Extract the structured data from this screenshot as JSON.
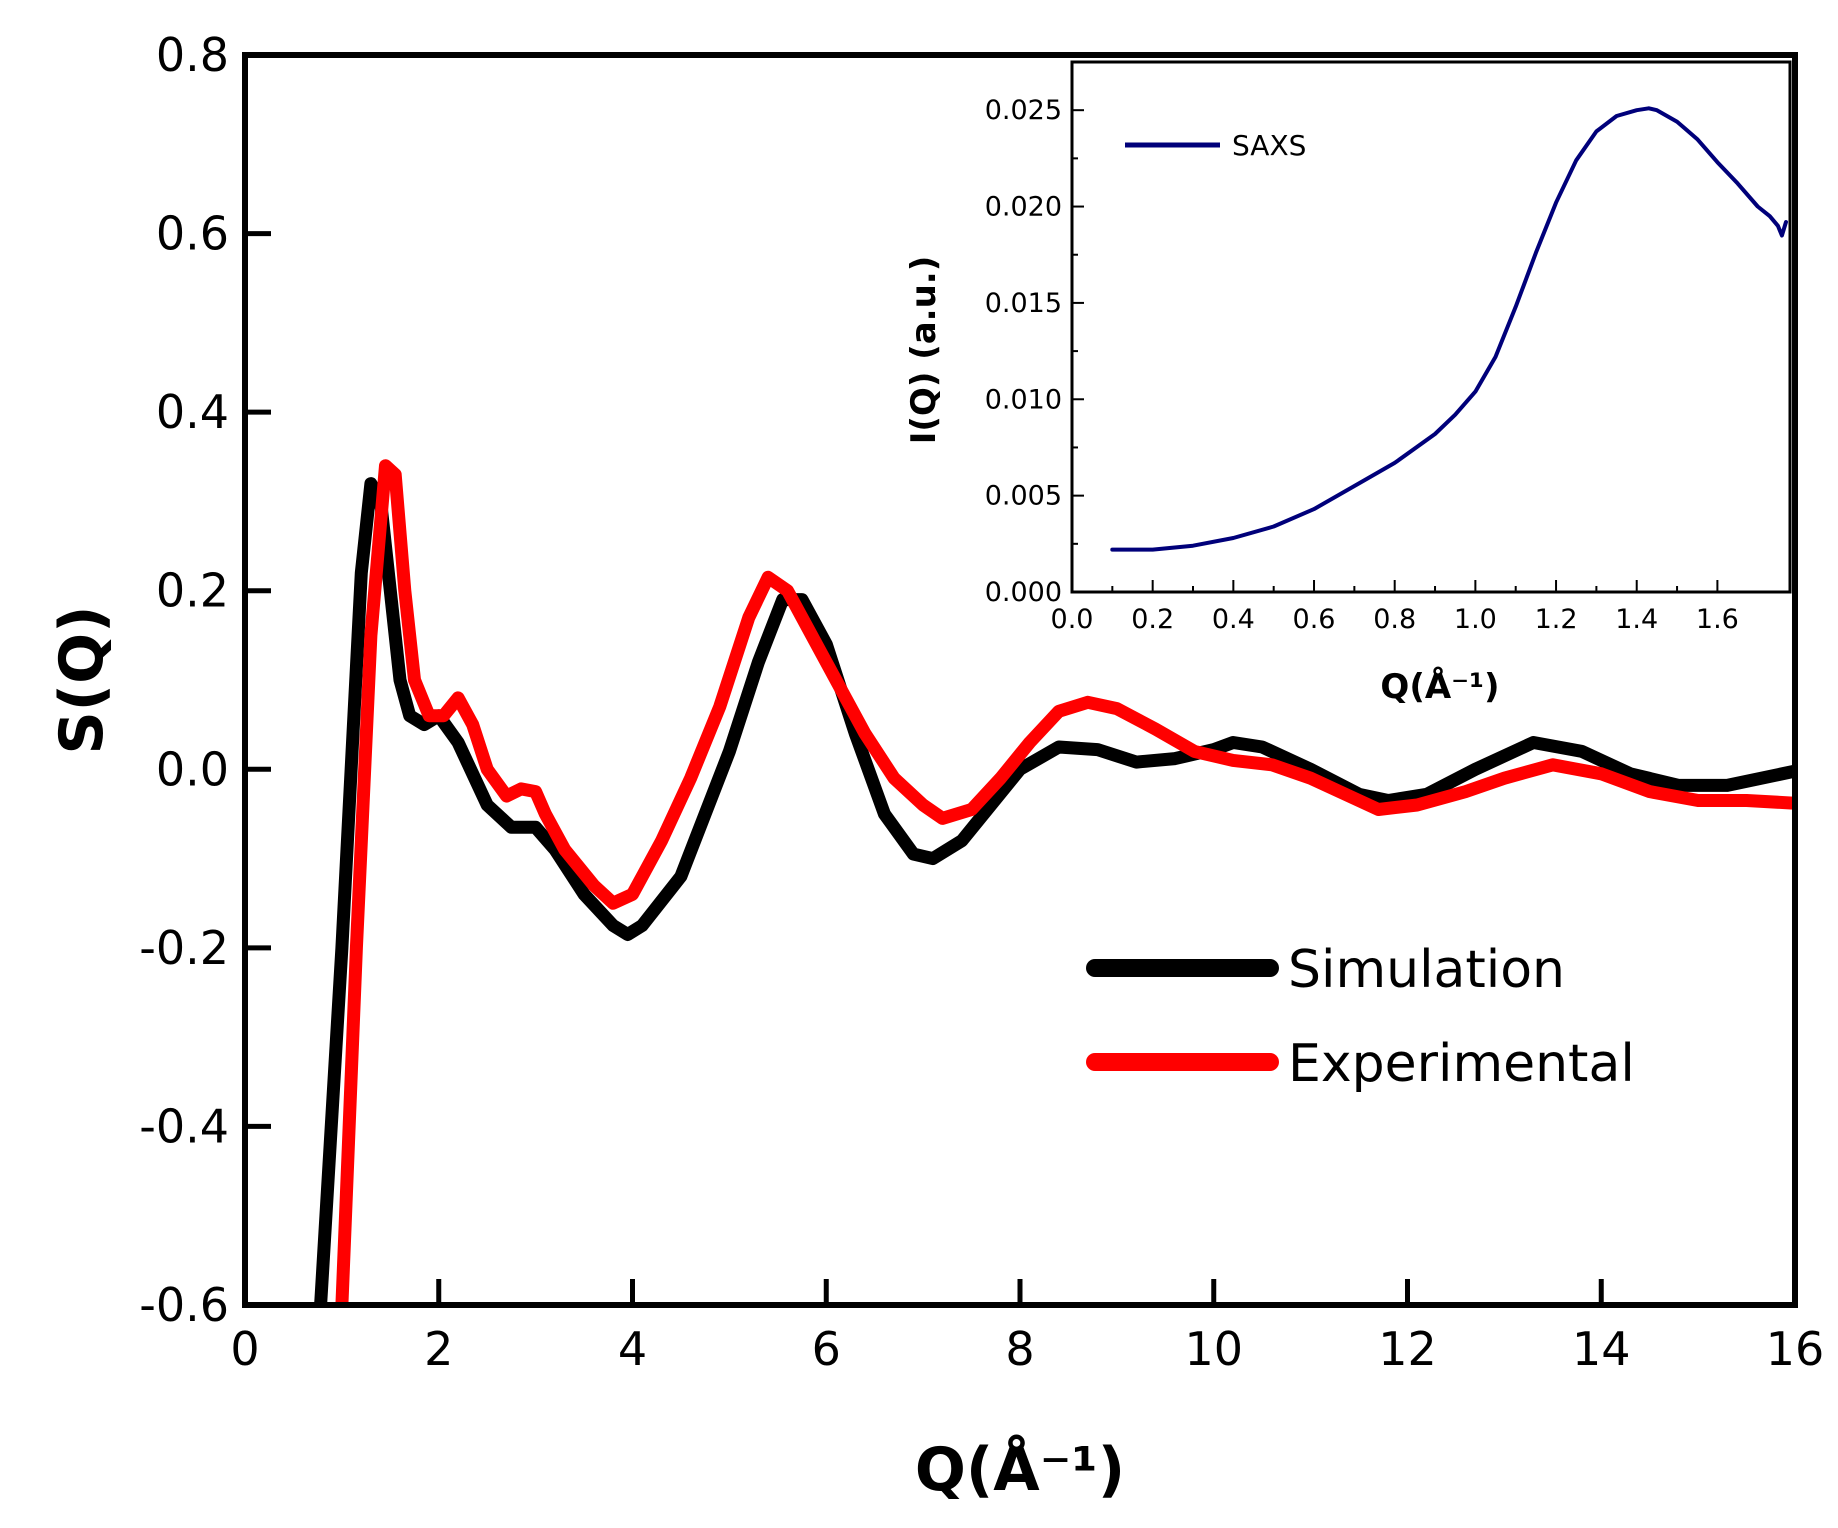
{
  "chart_data": [
    {
      "type": "line",
      "title": "",
      "xlabel": "Q(Å⁻¹)",
      "ylabel": "S(Q)",
      "xlim": [
        0,
        16
      ],
      "ylim": [
        -0.6,
        0.8
      ],
      "xticks": [
        "0",
        "2",
        "4",
        "6",
        "8",
        "10",
        "12",
        "14",
        "16"
      ],
      "yticks": [
        "-0.6",
        "-0.4",
        "-0.2",
        "0.0",
        "0.2",
        "0.4",
        "0.6",
        "0.8"
      ],
      "legend_position": "lower-right",
      "series": [
        {
          "name": "Simulation",
          "color": "#000000",
          "x": [
            0.78,
            1.0,
            1.2,
            1.3,
            1.4,
            1.5,
            1.6,
            1.7,
            1.85,
            2.0,
            2.2,
            2.5,
            2.75,
            3.0,
            3.2,
            3.5,
            3.8,
            3.95,
            4.1,
            4.5,
            5.0,
            5.3,
            5.55,
            5.75,
            6.0,
            6.3,
            6.6,
            6.9,
            7.1,
            7.4,
            7.7,
            8.0,
            8.4,
            8.8,
            9.2,
            9.6,
            10.0,
            10.2,
            10.5,
            11.0,
            11.5,
            11.8,
            12.2,
            12.7,
            13.3,
            13.8,
            14.3,
            14.8,
            15.3,
            16.0
          ],
          "values": [
            -0.6,
            -0.2,
            0.22,
            0.32,
            0.3,
            0.2,
            0.1,
            0.06,
            0.05,
            0.06,
            0.03,
            -0.04,
            -0.065,
            -0.065,
            -0.09,
            -0.14,
            -0.175,
            -0.185,
            -0.175,
            -0.12,
            0.02,
            0.12,
            0.19,
            0.19,
            0.14,
            0.04,
            -0.05,
            -0.095,
            -0.1,
            -0.08,
            -0.04,
            0.0,
            0.025,
            0.022,
            0.008,
            0.012,
            0.022,
            0.03,
            0.025,
            0.0,
            -0.028,
            -0.035,
            -0.028,
            0.0,
            0.03,
            0.02,
            -0.005,
            -0.018,
            -0.018,
            -0.002
          ]
        },
        {
          "name": "Experimental",
          "color": "#ff0000",
          "x": [
            1.0,
            1.15,
            1.3,
            1.45,
            1.55,
            1.65,
            1.75,
            1.9,
            2.05,
            2.2,
            2.35,
            2.5,
            2.7,
            2.85,
            3.0,
            3.1,
            3.3,
            3.6,
            3.8,
            4.0,
            4.3,
            4.6,
            4.9,
            5.2,
            5.4,
            5.6,
            5.85,
            6.1,
            6.4,
            6.7,
            7.0,
            7.2,
            7.5,
            7.8,
            8.1,
            8.4,
            8.7,
            9.0,
            9.4,
            9.8,
            10.2,
            10.6,
            11.0,
            11.4,
            11.7,
            12.1,
            12.6,
            13.0,
            13.5,
            14.0,
            14.5,
            15.0,
            15.5,
            16.0
          ],
          "values": [
            -0.6,
            -0.2,
            0.15,
            0.34,
            0.33,
            0.2,
            0.1,
            0.06,
            0.06,
            0.08,
            0.05,
            0.0,
            -0.03,
            -0.022,
            -0.025,
            -0.05,
            -0.09,
            -0.13,
            -0.15,
            -0.14,
            -0.08,
            -0.01,
            0.07,
            0.17,
            0.215,
            0.2,
            0.15,
            0.1,
            0.04,
            -0.01,
            -0.04,
            -0.055,
            -0.045,
            -0.01,
            0.03,
            0.065,
            0.075,
            0.068,
            0.045,
            0.02,
            0.01,
            0.005,
            -0.01,
            -0.03,
            -0.045,
            -0.04,
            -0.025,
            -0.01,
            0.005,
            -0.005,
            -0.025,
            -0.035,
            -0.035,
            -0.038
          ]
        }
      ]
    },
    {
      "type": "line",
      "title": "",
      "xlabel": "Q(Å⁻¹)",
      "ylabel": "I(Q) (a.u.)",
      "xlim": [
        0.0,
        1.78
      ],
      "ylim": [
        0.0,
        0.0275
      ],
      "xticks": [
        "0.0",
        "0.2",
        "0.4",
        "0.6",
        "0.8",
        "1.0",
        "1.2",
        "1.4",
        "1.6"
      ],
      "yticks": [
        "0.000",
        "0.005",
        "0.010",
        "0.015",
        "0.020",
        "0.025"
      ],
      "legend_position": "top-left",
      "series": [
        {
          "name": "SAXS",
          "color": "#00007a",
          "x": [
            0.1,
            0.2,
            0.3,
            0.4,
            0.5,
            0.6,
            0.7,
            0.8,
            0.9,
            0.95,
            1.0,
            1.05,
            1.1,
            1.15,
            1.2,
            1.25,
            1.3,
            1.35,
            1.4,
            1.43,
            1.45,
            1.5,
            1.55,
            1.6,
            1.65,
            1.7,
            1.73,
            1.75,
            1.76,
            1.77
          ],
          "values": [
            0.0022,
            0.0022,
            0.0024,
            0.0028,
            0.0034,
            0.0043,
            0.0055,
            0.0067,
            0.0082,
            0.0092,
            0.0104,
            0.0122,
            0.0148,
            0.0176,
            0.0202,
            0.0224,
            0.0239,
            0.0247,
            0.025,
            0.0251,
            0.025,
            0.0244,
            0.0235,
            0.0223,
            0.0212,
            0.02,
            0.0195,
            0.019,
            0.0185,
            0.0192
          ]
        }
      ]
    }
  ]
}
